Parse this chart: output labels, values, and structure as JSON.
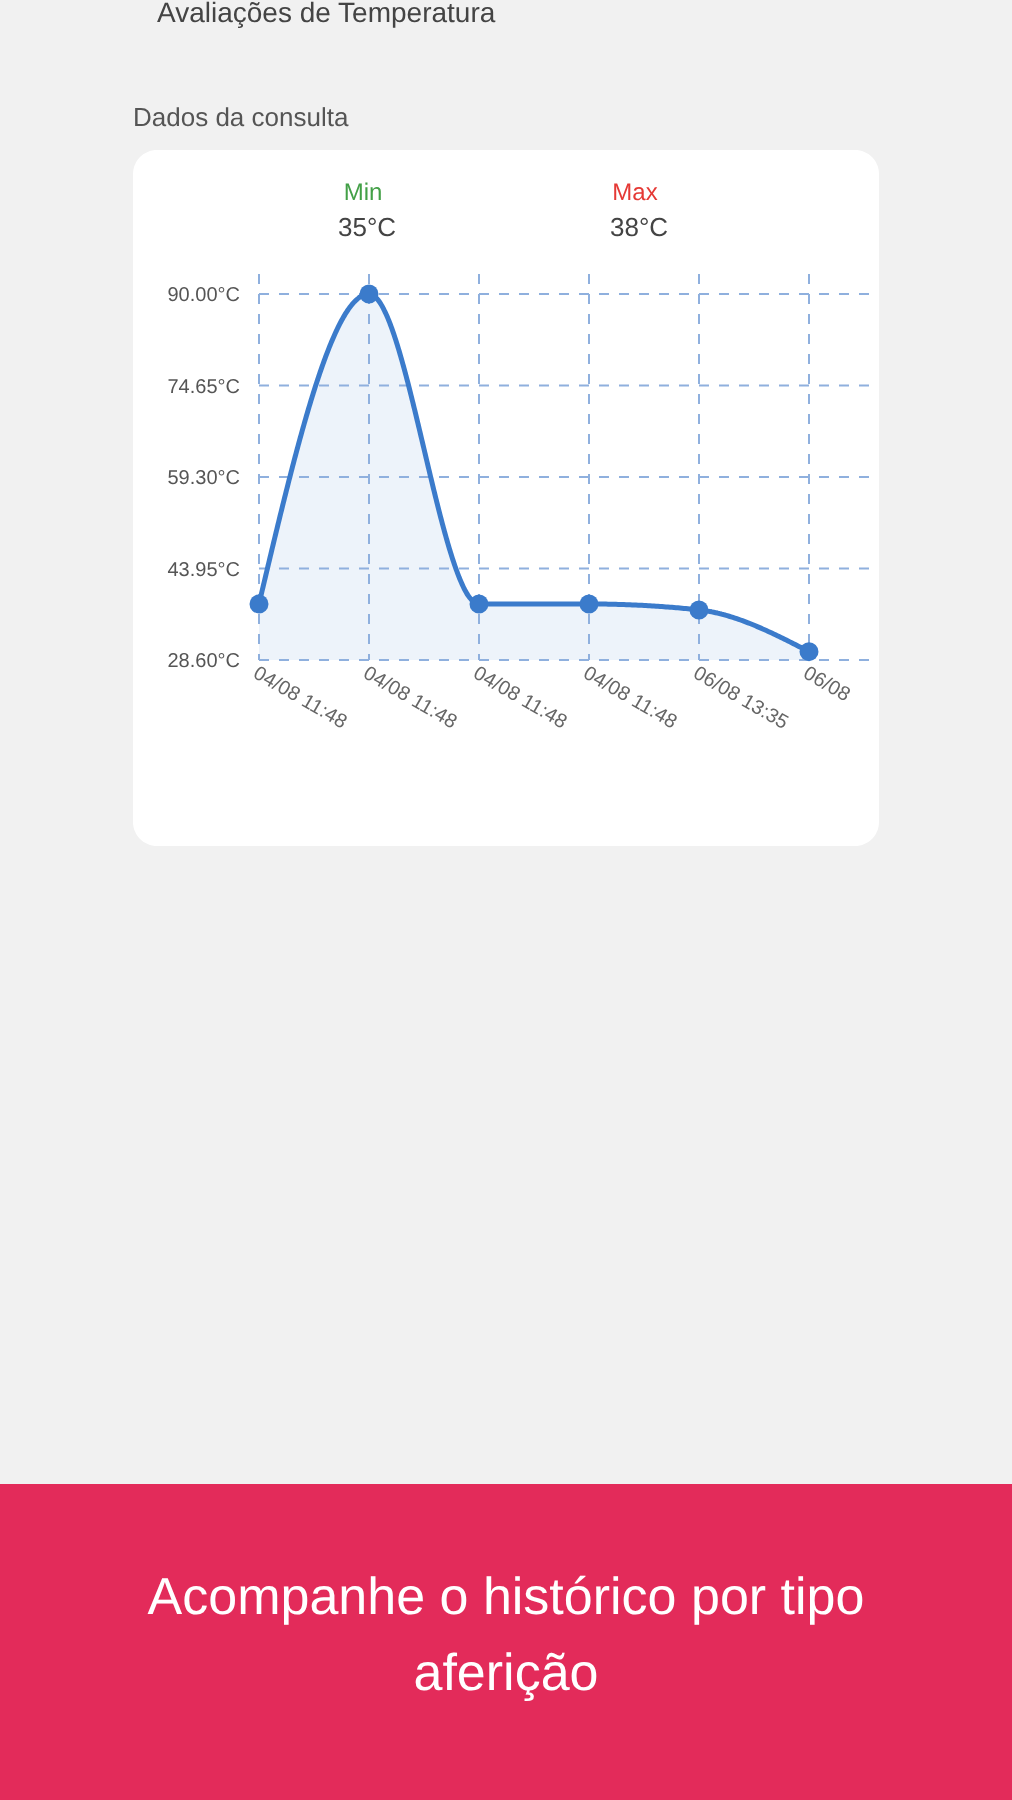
{
  "chart_data": {
    "type": "area",
    "title": "Dados da consulta",
    "annotations": [
      "Avaliações de Temperatura",
      "Min",
      "35°C",
      "Max",
      "38°C",
      "Acompanhe o histórico por tipo aferição"
    ],
    "categories": [
      "04/08 11:48",
      "04/08 11:48",
      "04/08 11:48",
      "04/08 11:48",
      "06/08 13:35",
      "06/08"
    ],
    "series": [
      {
        "color": "#3b7bcb",
        "values": [
          38,
          90,
          38,
          38,
          37,
          30
        ]
      }
    ],
    "ylim": [
      28.6,
      90
    ],
    "yticks": [
      {
        "value": 28.6,
        "label": "28.60°C"
      },
      {
        "value": 43.95,
        "label": "43.95°C"
      },
      {
        "value": 59.3,
        "label": "59.30°C"
      },
      {
        "value": 74.65,
        "label": "74.65°C"
      },
      {
        "value": 90,
        "label": "90.00°C"
      }
    ],
    "grid": true,
    "marker": "circle"
  }
}
